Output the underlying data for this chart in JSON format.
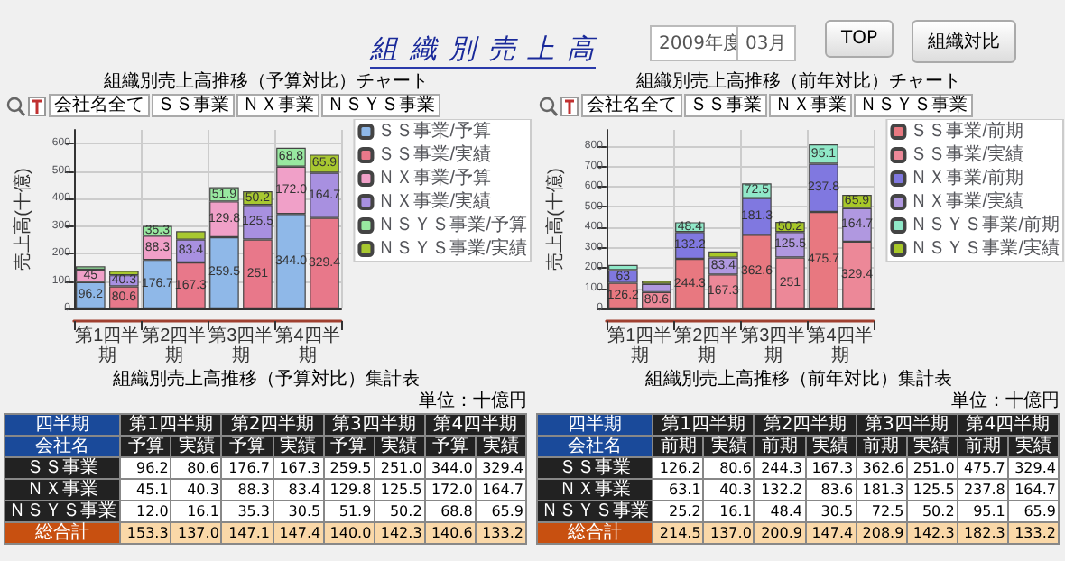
{
  "chart_data": [
    {
      "type": "other",
      "title": "組 織 別 売 上 高",
      "annotations": [
        "2009年度",
        "03月",
        "TOP",
        "組織対比"
      ]
    },
    {
      "type": "bar",
      "title": "組織別売上高推移（予算対比）チャート",
      "ylabel": "売上高(十億)",
      "stacked": true,
      "grid": true,
      "legend": "right",
      "categories": [
        "第1四半期",
        null,
        "第2四半期",
        null,
        "第3四半期",
        null,
        "第4四半期",
        null
      ],
      "ylim": [
        0,
        650
      ],
      "yticks": [
        0,
        100,
        200,
        300,
        400,
        500,
        600
      ],
      "annotations": [
        "会社名全て",
        "ＳＳ事業",
        "ＮＸ事業",
        "ＮＳＹＳ事業"
      ],
      "series": [
        {
          "name": "ＳＳ事業/予算",
          "color": "#8fb8e8",
          "values": [
            96.2,
            null,
            176.7,
            null,
            259.5,
            null,
            344.0,
            null
          ],
          "value_labels": [
            "96.2",
            null,
            "176.7",
            null,
            "259.5",
            null,
            "344.0",
            null
          ]
        },
        {
          "name": "ＳＳ事業/実績",
          "color": "#e8788a",
          "values": [
            null,
            80.6,
            null,
            167.3,
            null,
            251.0,
            null,
            329.4
          ],
          "value_labels": [
            null,
            "80.6",
            null,
            "167.3",
            null,
            "251",
            null,
            "329.4"
          ]
        },
        {
          "name": "ＮＸ事業/予算",
          "color": "#f0a0c8",
          "values": [
            45.1,
            null,
            88.3,
            null,
            129.8,
            null,
            172.0,
            null
          ],
          "value_labels": [
            "45",
            null,
            "88.3",
            null,
            "129.8",
            null,
            "172.0",
            null
          ]
        },
        {
          "name": "ＮＸ事業/実績",
          "color": "#a890e0",
          "values": [
            null,
            40.3,
            null,
            83.4,
            null,
            125.5,
            null,
            164.7
          ],
          "value_labels": [
            null,
            "40.3",
            null,
            "83.4",
            null,
            "125.5",
            null,
            "164.7"
          ]
        },
        {
          "name": "ＮＳＹＳ事業/予算",
          "color": "#98e8a0",
          "values": [
            12.0,
            null,
            35.3,
            null,
            51.9,
            null,
            68.8,
            null
          ],
          "value_labels": [
            null,
            null,
            "35.3",
            null,
            "51.9",
            null,
            "68.8",
            null
          ]
        },
        {
          "name": "ＮＳＹＳ事業/実績",
          "color": "#a8c830",
          "values": [
            null,
            16.1,
            null,
            30.5,
            null,
            50.2,
            null,
            65.9
          ],
          "value_labels": [
            null,
            null,
            null,
            null,
            null,
            "50.2",
            null,
            "65.9"
          ]
        }
      ]
    },
    {
      "type": "bar",
      "title": "組織別売上高推移（前年対比）チャート",
      "ylabel": "売上高(十億)",
      "stacked": true,
      "grid": true,
      "legend": "right",
      "categories": [
        "第1四半期",
        null,
        "第2四半期",
        null,
        "第3四半期",
        null,
        "第4四半期",
        null
      ],
      "ylim": [
        0,
        880
      ],
      "yticks": [
        0,
        100,
        200,
        300,
        400,
        500,
        600,
        700,
        800
      ],
      "annotations": [
        "会社名全て",
        "ＳＳ事業",
        "ＮＸ事業",
        "ＮＳＹＳ事業"
      ],
      "series": [
        {
          "name": "ＳＳ事業/前期",
          "color": "#e87880",
          "values": [
            126.2,
            null,
            244.3,
            null,
            362.6,
            null,
            475.7,
            null
          ],
          "value_labels": [
            "126.2",
            null,
            "244.3",
            null,
            "362.6",
            null,
            "475.7",
            null
          ]
        },
        {
          "name": "ＳＳ事業/実績",
          "color": "#ec8898",
          "values": [
            null,
            80.6,
            null,
            167.3,
            null,
            251.0,
            null,
            329.4
          ],
          "value_labels": [
            null,
            "80.6",
            null,
            "167.3",
            null,
            "251",
            null,
            "329.4"
          ]
        },
        {
          "name": "ＮＸ事業/前期",
          "color": "#8078e0",
          "values": [
            63.1,
            null,
            132.2,
            null,
            181.3,
            null,
            237.8,
            null
          ],
          "value_labels": [
            "63",
            null,
            "132.2",
            null,
            "181.3",
            null,
            "237.8",
            null
          ]
        },
        {
          "name": "ＮＸ事業/実績",
          "color": "#b098e0",
          "values": [
            null,
            40.3,
            null,
            83.4,
            null,
            125.5,
            null,
            164.7
          ],
          "value_labels": [
            null,
            null,
            null,
            "83.4",
            null,
            "125.5",
            null,
            "164.7"
          ]
        },
        {
          "name": "ＮＳＹＳ事業/前期",
          "color": "#90e8c8",
          "values": [
            25.2,
            null,
            48.4,
            null,
            72.5,
            null,
            95.1,
            null
          ],
          "value_labels": [
            null,
            null,
            "48.4",
            null,
            "72.5",
            null,
            "95.1",
            null
          ]
        },
        {
          "name": "ＮＳＹＳ事業/実績",
          "color": "#a8c828",
          "values": [
            null,
            16.1,
            null,
            30.5,
            null,
            50.2,
            null,
            65.9
          ],
          "value_labels": [
            null,
            null,
            null,
            null,
            null,
            "50.2",
            null,
            "65.9"
          ]
        }
      ]
    },
    {
      "type": "other",
      "title": "組織別売上高推移（予算対比）集計表",
      "annotations": [
        "単位：十億円",
        "四半期",
        "第1四半期",
        "第2四半期",
        "第3四半期",
        "第4四半期",
        "会社名",
        "予算",
        "実績",
        "予算",
        "実績",
        "予算",
        "実績",
        "予算",
        "実績",
        "ＳＳ事業",
        "96.2",
        "80.6",
        "176.7",
        "167.3",
        "259.5",
        "251.0",
        "344.0",
        "329.4",
        "ＮＸ事業",
        "45.1",
        "40.3",
        "88.3",
        "83.4",
        "129.8",
        "125.5",
        "172.0",
        "164.7",
        "ＮＳＹＳ事業",
        "12.0",
        "16.1",
        "35.3",
        "30.5",
        "51.9",
        "50.2",
        "68.8",
        "65.9",
        "総合計",
        "153.3",
        "137.0",
        "147.1",
        "147.4",
        "140.0",
        "142.3",
        "140.6",
        "133.2"
      ]
    },
    {
      "type": "other",
      "title": "組織別売上高推移（前年対比）集計表",
      "annotations": [
        "単位：十億円",
        "四半期",
        "第1四半期",
        "第2四半期",
        "第3四半期",
        "第4四半期",
        "会社名",
        "前期",
        "実績",
        "前期",
        "実績",
        "前期",
        "実績",
        "前期",
        "実績",
        "ＳＳ事業",
        "126.2",
        "80.6",
        "244.3",
        "167.3",
        "362.6",
        "251.0",
        "475.7",
        "329.4",
        "ＮＸ事業",
        "63.1",
        "40.3",
        "132.2",
        "83.6",
        "181.3",
        "125.5",
        "237.8",
        "164.7",
        "ＮＳＹＳ事業",
        "25.2",
        "16.1",
        "48.4",
        "30.5",
        "72.5",
        "50.2",
        "95.1",
        "65.9",
        "総合計",
        "214.5",
        "137.0",
        "200.9",
        "147.4",
        "208.9",
        "142.3",
        "182.3",
        "133.2"
      ]
    }
  ]
}
